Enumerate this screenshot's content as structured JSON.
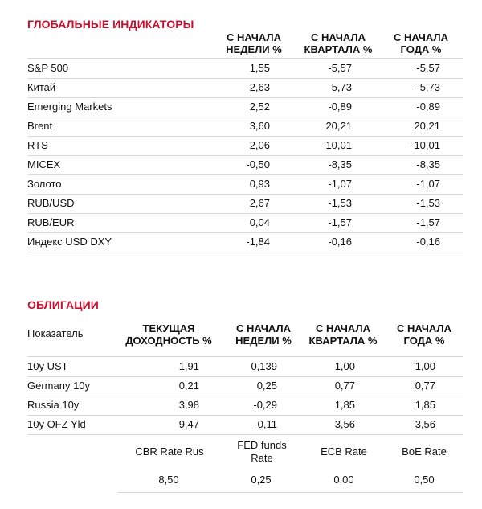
{
  "global": {
    "title": "ГЛОБАЛЬНЫЕ ИНДИКАТОРЫ",
    "columns": [
      "С НАЧАЛА\nНЕДЕЛИ %",
      "С НАЧАЛА\nКВАРТАЛА %",
      "С НАЧАЛА\nГОДА %"
    ],
    "rows": [
      {
        "name": "S&P 500",
        "week": "1,55",
        "quarter": "-5,57",
        "year": "-5,57"
      },
      {
        "name": "Китай",
        "week": "-2,63",
        "quarter": "-5,73",
        "year": "-5,73"
      },
      {
        "name": "Emerging Markets",
        "week": "2,52",
        "quarter": "-0,89",
        "year": "-0,89"
      },
      {
        "name": "Brent",
        "week": "3,60",
        "quarter": "20,21",
        "year": "20,21"
      },
      {
        "name": "RTS",
        "week": "2,06",
        "quarter": "-10,01",
        "year": "-10,01"
      },
      {
        "name": "MICEX",
        "week": "-0,50",
        "quarter": "-8,35",
        "year": "-8,35"
      },
      {
        "name": "Золото",
        "week": "0,93",
        "quarter": "-1,07",
        "year": "-1,07"
      },
      {
        "name": "RUB/USD",
        "week": "2,67",
        "quarter": "-1,53",
        "year": "-1,53"
      },
      {
        "name": "RUB/EUR",
        "week": "0,04",
        "quarter": "-1,57",
        "year": "-1,57"
      },
      {
        "name": "Индекс USD DXY",
        "week": "-1,84",
        "quarter": "-0,16",
        "year": "-0,16"
      }
    ]
  },
  "bonds": {
    "title": "ОБЛИГАЦИИ",
    "first_column": "Показатель",
    "columns": [
      "ТЕКУЩАЯ\nДОХОДНОСТЬ %",
      "С НАЧАЛА\nНЕДЕЛИ %",
      "С НАЧАЛА\nКВАРТАЛА %",
      "С НАЧАЛА\nГОДА %"
    ],
    "rows": [
      {
        "name": "10y UST",
        "current": "1,91",
        "week": "0,139",
        "quarter": "1,00",
        "year": "1,00"
      },
      {
        "name": "Germany 10y",
        "current": "0,21",
        "week": "0,25",
        "quarter": "0,77",
        "year": "0,77"
      },
      {
        "name": "Russia 10y",
        "current": "3,98",
        "week": "-0,29",
        "quarter": "1,85",
        "year": "1,85"
      },
      {
        "name": "10y OFZ Yld",
        "current": "9,47",
        "week": "-0,11",
        "quarter": "3,56",
        "year": "3,56"
      }
    ],
    "rates": {
      "labels": [
        "CBR Rate Rus",
        "FED funds\nRate",
        "ECB Rate",
        "BoE Rate"
      ],
      "values": [
        "8,50",
        "0,25",
        "0,00",
        "0,50"
      ]
    }
  }
}
